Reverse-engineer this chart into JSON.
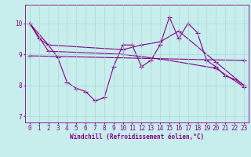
{
  "xlabel": "Windchill (Refroidissement éolien,°C)",
  "xlim": [
    -0.5,
    23.5
  ],
  "ylim": [
    6.8,
    10.6
  ],
  "yticks": [
    7,
    8,
    9,
    10
  ],
  "xticks": [
    0,
    1,
    2,
    3,
    4,
    5,
    6,
    7,
    8,
    9,
    10,
    11,
    12,
    13,
    14,
    15,
    16,
    17,
    18,
    19,
    20,
    21,
    22,
    23
  ],
  "bg_color": "#c8eded",
  "grid_color": "#a8d8d8",
  "line_color": "#880088",
  "series1_x": [
    0,
    1,
    2,
    3,
    4,
    5,
    6,
    7,
    8,
    9,
    10,
    11,
    12,
    13,
    14,
    15,
    16,
    17,
    18,
    19,
    20,
    21,
    22,
    23
  ],
  "series1_y": [
    10.0,
    9.5,
    9.3,
    8.9,
    8.1,
    7.9,
    7.8,
    7.5,
    7.6,
    8.6,
    9.3,
    9.3,
    8.6,
    8.8,
    9.3,
    10.2,
    9.5,
    10.0,
    9.7,
    8.8,
    8.6,
    8.3,
    8.2,
    8.0
  ],
  "series2_x": [
    0,
    2,
    10,
    12,
    14,
    16,
    20,
    23
  ],
  "series2_y": [
    10.0,
    9.3,
    9.15,
    9.3,
    9.4,
    9.75,
    8.75,
    8.0
  ],
  "series3_x": [
    0,
    2,
    10,
    14,
    20,
    23
  ],
  "series3_y": [
    10.0,
    9.1,
    9.0,
    8.85,
    8.55,
    7.95
  ],
  "series4_x": [
    0,
    23
  ],
  "series4_y": [
    8.95,
    8.8
  ]
}
